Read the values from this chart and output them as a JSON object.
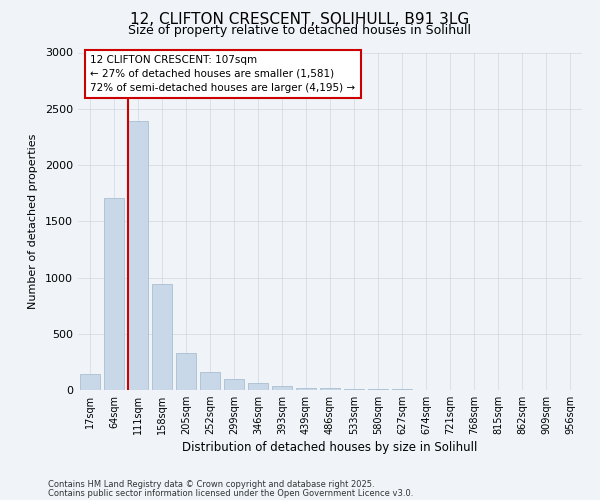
{
  "title_line1": "12, CLIFTON CRESCENT, SOLIHULL, B91 3LG",
  "title_line2": "Size of property relative to detached houses in Solihull",
  "xlabel": "Distribution of detached houses by size in Solihull",
  "ylabel": "Number of detached properties",
  "footnote_line1": "Contains HM Land Registry data © Crown copyright and database right 2025.",
  "footnote_line2": "Contains public sector information licensed under the Open Government Licence v3.0.",
  "annotation_line1": "12 CLIFTON CRESCENT: 107sqm",
  "annotation_line2": "← 27% of detached houses are smaller (1,581)",
  "annotation_line3": "72% of semi-detached houses are larger (4,195) →",
  "bar_color": "#c8d8e8",
  "bar_edge_color": "#a0b8cc",
  "redline_color": "#cc0000",
  "grid_color": "#d0d8e0",
  "background_color": "#f0f4f8",
  "categories": [
    "17sqm",
    "64sqm",
    "111sqm",
    "158sqm",
    "205sqm",
    "252sqm",
    "299sqm",
    "346sqm",
    "393sqm",
    "439sqm",
    "486sqm",
    "533sqm",
    "580sqm",
    "627sqm",
    "674sqm",
    "721sqm",
    "768sqm",
    "815sqm",
    "862sqm",
    "909sqm",
    "956sqm"
  ],
  "values": [
    140,
    1710,
    2390,
    940,
    330,
    160,
    100,
    65,
    40,
    20,
    15,
    10,
    10,
    5,
    3,
    2,
    2,
    1,
    1,
    1,
    1
  ],
  "ylim": [
    0,
    3000
  ],
  "yticks": [
    0,
    500,
    1000,
    1500,
    2000,
    2500,
    3000
  ],
  "redline_x": 1.57
}
